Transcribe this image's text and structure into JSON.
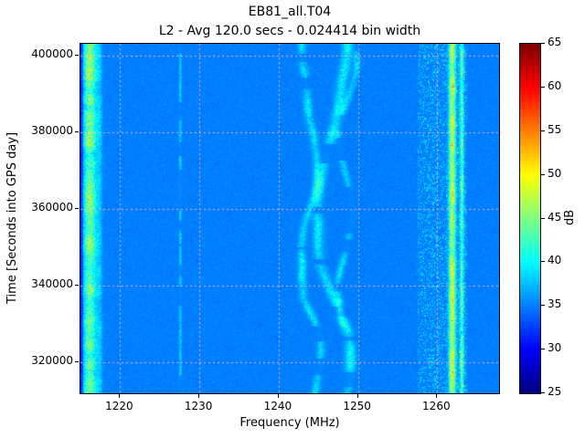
{
  "chart_data": {
    "type": "heatmap",
    "title": "EB81_all.T04",
    "subtitle": "L2 - Avg 120.0 secs - 0.024414 bin width",
    "xlabel": "Frequency (MHz)",
    "ylabel": "Time [Seconds into GPS day]",
    "colorbar_label": "dB",
    "colormap": "jet",
    "xlim": [
      1215.0,
      1267.8
    ],
    "ylim": [
      311900,
      403100
    ],
    "clim": [
      25,
      65
    ],
    "xticks": [
      1220,
      1230,
      1240,
      1250,
      1260
    ],
    "yticks": [
      320000,
      340000,
      360000,
      380000,
      400000
    ],
    "colorbar_ticks": [
      25,
      30,
      35,
      40,
      45,
      50,
      55,
      60,
      65
    ],
    "grid": true,
    "grid_color": "#ffb0bc",
    "background_db": 35,
    "noise_db": 1.0,
    "features": [
      {
        "kind": "band",
        "freq": 1215.15,
        "sigma": 0.12,
        "boost": -5,
        "noise": 1,
        "desc": "dark column at left plot edge"
      },
      {
        "kind": "band",
        "freq": 1216.2,
        "sigma": 0.55,
        "boost": 9,
        "noise": 5,
        "flicker": 0.35,
        "desc": "strong broadband emission stripe ~1215.5-1217.5 MHz, green/yellow speckle, full time span"
      },
      {
        "kind": "band",
        "freq": 1217.4,
        "sigma": 0.25,
        "boost": 2.5,
        "noise": 2,
        "flicker": 0.4,
        "desc": "cyan fringe right of main stripe"
      },
      {
        "kind": "band",
        "freq": 1227.6,
        "sigma": 0.1,
        "boost": 3.5,
        "noise": 2.5,
        "gate": 0.35,
        "desc": "faint intermittent narrowband line near 1227.6 MHz"
      },
      {
        "kind": "wavy",
        "freq": 1243.8,
        "amp": 1.1,
        "period": 52000,
        "phase": 0.3,
        "sigma": 0.35,
        "boost": 4,
        "noise": 2.5,
        "desc": "drifting cyan trace meandering around 1244 MHz"
      },
      {
        "kind": "wavy",
        "freq": 1246.8,
        "amp": 2.1,
        "period": 86000,
        "phase": 3.6,
        "sigma": 0.45,
        "boost": 4.5,
        "noise": 2.5,
        "desc": "drifting cyan trace meandering 1245-1249 MHz"
      },
      {
        "kind": "wavy",
        "freq": 1248.3,
        "amp": 1.3,
        "period": 40000,
        "phase": 1.8,
        "sigma": 0.3,
        "boost": 3.5,
        "noise": 2.5,
        "desc": "drifting cyan trace around 1248 MHz"
      },
      {
        "kind": "speckle",
        "fmin": 1257.5,
        "fmax": 1263.8,
        "density": 0.22,
        "boost": 4,
        "noise": 4,
        "desc": "noisy speckled band 1258-1264 MHz"
      },
      {
        "kind": "band",
        "freq": 1261.9,
        "sigma": 0.28,
        "boost": 12,
        "noise": 4,
        "flicker": 0.2,
        "desc": "strong green/yellow carrier near 1262 MHz"
      },
      {
        "kind": "band",
        "freq": 1263.1,
        "sigma": 0.18,
        "boost": 7,
        "noise": 4,
        "flicker": 0.3,
        "desc": "second carrier near 1263 MHz"
      }
    ]
  }
}
